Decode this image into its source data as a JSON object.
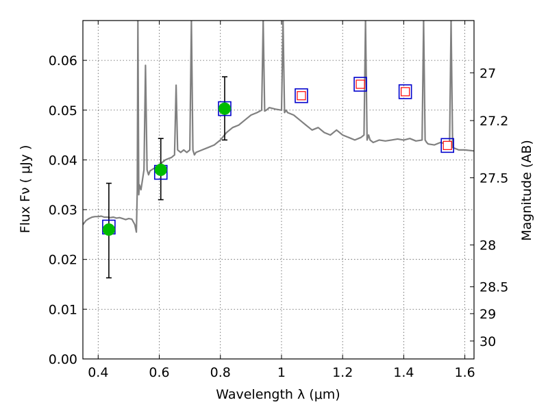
{
  "chart_data": {
    "type": "line",
    "title": "",
    "xlabel": "Wavelength  λ (μm)",
    "ylabel": "Flux  Fν  ( μJy )",
    "y2label": "Magnitude (AB)",
    "xlim": [
      0.35,
      1.63
    ],
    "ylim": [
      0.0,
      0.068
    ],
    "grid": true,
    "x_ticks": [
      0.4,
      0.6,
      0.8,
      1.0,
      1.2,
      1.4,
      1.6
    ],
    "x_tick_labels": [
      "0.4",
      "0.6",
      "0.8",
      "1",
      "1.2",
      "1.4",
      "1.6"
    ],
    "y_ticks": [
      0.0,
      0.01,
      0.02,
      0.03,
      0.04,
      0.05,
      0.06
    ],
    "y_tick_labels": [
      "0.00",
      "0.01",
      "0.02",
      "0.03",
      "0.04",
      "0.05",
      "0.06"
    ],
    "y2_ticks": [
      {
        "label": "27",
        "flux": 0.0575
      },
      {
        "label": "27.2",
        "flux": 0.0479
      },
      {
        "label": "27.5",
        "flux": 0.0364
      },
      {
        "label": "28",
        "flux": 0.0229
      },
      {
        "label": "28.5",
        "flux": 0.0145
      },
      {
        "label": "29",
        "flux": 0.0091
      },
      {
        "label": "30",
        "flux": 0.0036
      }
    ],
    "colors": {
      "spectrum": "#808080",
      "photometry_fill": "#00bb00",
      "model_box": "#0000cc",
      "upper_box": "#ff0000",
      "errorbar": "#000000",
      "grid": "#555555"
    },
    "series": [
      {
        "kind": "spectrum",
        "x": [
          0.35,
          0.36,
          0.37,
          0.38,
          0.39,
          0.4,
          0.41,
          0.42,
          0.43,
          0.44,
          0.45,
          0.46,
          0.47,
          0.48,
          0.49,
          0.5,
          0.51,
          0.52,
          0.525,
          0.528,
          0.53,
          0.533,
          0.535,
          0.54,
          0.545,
          0.55,
          0.555,
          0.56,
          0.565,
          0.57,
          0.58,
          0.59,
          0.6,
          0.62,
          0.64,
          0.65,
          0.655,
          0.66,
          0.67,
          0.68,
          0.69,
          0.7,
          0.705,
          0.71,
          0.715,
          0.72,
          0.74,
          0.76,
          0.78,
          0.8,
          0.82,
          0.84,
          0.86,
          0.88,
          0.9,
          0.92,
          0.935,
          0.94,
          0.945,
          0.95,
          0.96,
          0.98,
          1.0,
          1.005,
          1.01,
          1.015,
          1.02,
          1.04,
          1.06,
          1.08,
          1.1,
          1.12,
          1.14,
          1.16,
          1.18,
          1.2,
          1.22,
          1.24,
          1.26,
          1.27,
          1.275,
          1.28,
          1.285,
          1.29,
          1.3,
          1.32,
          1.34,
          1.36,
          1.38,
          1.4,
          1.42,
          1.44,
          1.46,
          1.465,
          1.47,
          1.475,
          1.48,
          1.5,
          1.52,
          1.54,
          1.55,
          1.555,
          1.56,
          1.58,
          1.6,
          1.63
        ],
        "y": [
          0.027,
          0.0278,
          0.0282,
          0.0285,
          0.0286,
          0.0286,
          0.0287,
          0.0285,
          0.0285,
          0.0284,
          0.0285,
          0.0283,
          0.0284,
          0.0282,
          0.028,
          0.0282,
          0.0281,
          0.027,
          0.0255,
          0.034,
          0.068,
          0.033,
          0.035,
          0.034,
          0.036,
          0.038,
          0.059,
          0.038,
          0.037,
          0.0378,
          0.0382,
          0.0385,
          0.039,
          0.04,
          0.0405,
          0.041,
          0.055,
          0.042,
          0.0415,
          0.042,
          0.0415,
          0.042,
          0.068,
          0.042,
          0.041,
          0.0415,
          0.042,
          0.0425,
          0.043,
          0.044,
          0.0455,
          0.0465,
          0.047,
          0.048,
          0.049,
          0.0495,
          0.05,
          0.068,
          0.0498,
          0.05,
          0.0505,
          0.0502,
          0.05,
          0.068,
          0.0495,
          0.05,
          0.0495,
          0.049,
          0.048,
          0.047,
          0.046,
          0.0465,
          0.0455,
          0.045,
          0.046,
          0.045,
          0.0445,
          0.044,
          0.0445,
          0.045,
          0.068,
          0.044,
          0.045,
          0.044,
          0.0435,
          0.044,
          0.0438,
          0.044,
          0.0442,
          0.044,
          0.0443,
          0.0438,
          0.044,
          0.068,
          0.044,
          0.0435,
          0.0432,
          0.043,
          0.0435,
          0.0432,
          0.043,
          0.068,
          0.0425,
          0.042,
          0.042,
          0.0418
        ]
      },
      {
        "kind": "photometry",
        "x": [
          0.435,
          0.605,
          0.814
        ],
        "y": [
          0.026,
          0.038,
          0.0503
        ],
        "err_lo": [
          0.0163,
          0.032,
          0.044
        ],
        "err_hi": [
          0.0353,
          0.0443,
          0.0567
        ]
      },
      {
        "kind": "model_blue_boxes",
        "x": [
          0.435,
          0.605,
          0.814,
          1.065,
          1.258,
          1.405,
          1.543
        ],
        "y": [
          0.0265,
          0.0375,
          0.0503,
          0.0529,
          0.0552,
          0.0537,
          0.0429
        ]
      },
      {
        "kind": "model_red_boxes",
        "x": [
          1.065,
          1.258,
          1.405,
          1.543
        ],
        "y": [
          0.0529,
          0.0552,
          0.0537,
          0.0429
        ]
      }
    ]
  }
}
